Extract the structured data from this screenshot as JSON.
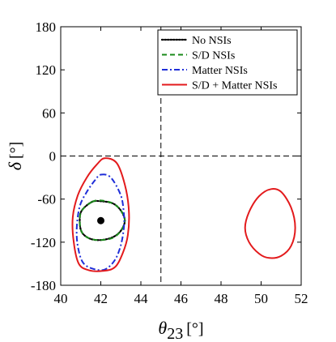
{
  "chart_data": {
    "type": "line",
    "xlim": [
      40,
      52
    ],
    "ylim": [
      -180,
      180
    ],
    "xticks": [
      "40",
      "42",
      "44",
      "46",
      "48",
      "50",
      "52"
    ],
    "yticks": [
      "-180",
      "-120",
      "-60",
      "0",
      "60",
      "120",
      "180"
    ],
    "xlabel_symbol": "θ",
    "xlabel_sub": "23",
    "xlabel_unit": "[°]",
    "ylabel_symbol": "δ",
    "ylabel_unit": "[°]",
    "legend_position": "top-right",
    "reference_lines": [
      {
        "axis": "x",
        "value": 45,
        "style": "dashed",
        "color": "#000000"
      },
      {
        "axis": "y",
        "value": 0,
        "style": "dashed",
        "color": "#000000"
      }
    ],
    "best_fit_point": {
      "x": 42,
      "y": -90,
      "color": "#000000"
    },
    "series": [
      {
        "name": "No NSIs",
        "color": "#000000",
        "dash": "dotted",
        "contours": [
          [
            [
              41.55,
              -64
            ],
            [
              42.0,
              -63
            ],
            [
              42.6,
              -66
            ],
            [
              43.0,
              -76
            ],
            [
              43.2,
              -90
            ],
            [
              43.0,
              -104
            ],
            [
              42.6,
              -113
            ],
            [
              42.0,
              -117
            ],
            [
              41.45,
              -115
            ],
            [
              41.05,
              -106
            ],
            [
              40.95,
              -90
            ],
            [
              41.05,
              -76
            ],
            [
              41.55,
              -64
            ]
          ]
        ]
      },
      {
        "name": "S/D NSIs",
        "color": "#1a8a1a",
        "dash": "dashed",
        "contours": [
          [
            [
              41.55,
              -64
            ],
            [
              42.0,
              -62
            ],
            [
              42.6,
              -66
            ],
            [
              43.0,
              -76
            ],
            [
              43.2,
              -90
            ],
            [
              43.0,
              -104
            ],
            [
              42.6,
              -114
            ],
            [
              42.0,
              -117
            ],
            [
              41.45,
              -115
            ],
            [
              41.05,
              -106
            ],
            [
              40.95,
              -90
            ],
            [
              41.05,
              -76
            ],
            [
              41.55,
              -64
            ]
          ]
        ]
      },
      {
        "name": "Matter NSIs",
        "color": "#1f2ed8",
        "dash": "dashdot",
        "contours": [
          [
            [
              42.0,
              -26
            ],
            [
              42.5,
              -30
            ],
            [
              43.0,
              -55
            ],
            [
              43.15,
              -80
            ],
            [
              43.15,
              -100
            ],
            [
              43.0,
              -124
            ],
            [
              42.7,
              -145
            ],
            [
              42.2,
              -158
            ],
            [
              41.6,
              -157
            ],
            [
              41.1,
              -148
            ],
            [
              40.85,
              -125
            ],
            [
              40.8,
              -100
            ],
            [
              40.95,
              -70
            ],
            [
              41.3,
              -50
            ],
            [
              41.7,
              -34
            ],
            [
              42.0,
              -26
            ]
          ]
        ]
      },
      {
        "name": "S/D + Matter NSIs",
        "color": "#e31a1c",
        "dash": "solid",
        "contours": [
          [
            [
              42.2,
              -3
            ],
            [
              42.8,
              -10
            ],
            [
              43.2,
              -40
            ],
            [
              43.4,
              -75
            ],
            [
              43.35,
              -110
            ],
            [
              43.1,
              -135
            ],
            [
              42.7,
              -155
            ],
            [
              42.1,
              -160
            ],
            [
              41.4,
              -159
            ],
            [
              40.9,
              -150
            ],
            [
              40.65,
              -120
            ],
            [
              40.6,
              -85
            ],
            [
              40.85,
              -55
            ],
            [
              41.3,
              -30
            ],
            [
              41.8,
              -12
            ],
            [
              42.2,
              -3
            ]
          ],
          [
            [
              50.5,
              -46
            ],
            [
              51.0,
              -50
            ],
            [
              51.5,
              -72
            ],
            [
              51.7,
              -100
            ],
            [
              51.5,
              -125
            ],
            [
              51.0,
              -139
            ],
            [
              50.4,
              -142
            ],
            [
              49.9,
              -136
            ],
            [
              49.4,
              -120
            ],
            [
              49.2,
              -100
            ],
            [
              49.4,
              -78
            ],
            [
              49.9,
              -56
            ],
            [
              50.5,
              -46
            ]
          ]
        ]
      }
    ]
  }
}
